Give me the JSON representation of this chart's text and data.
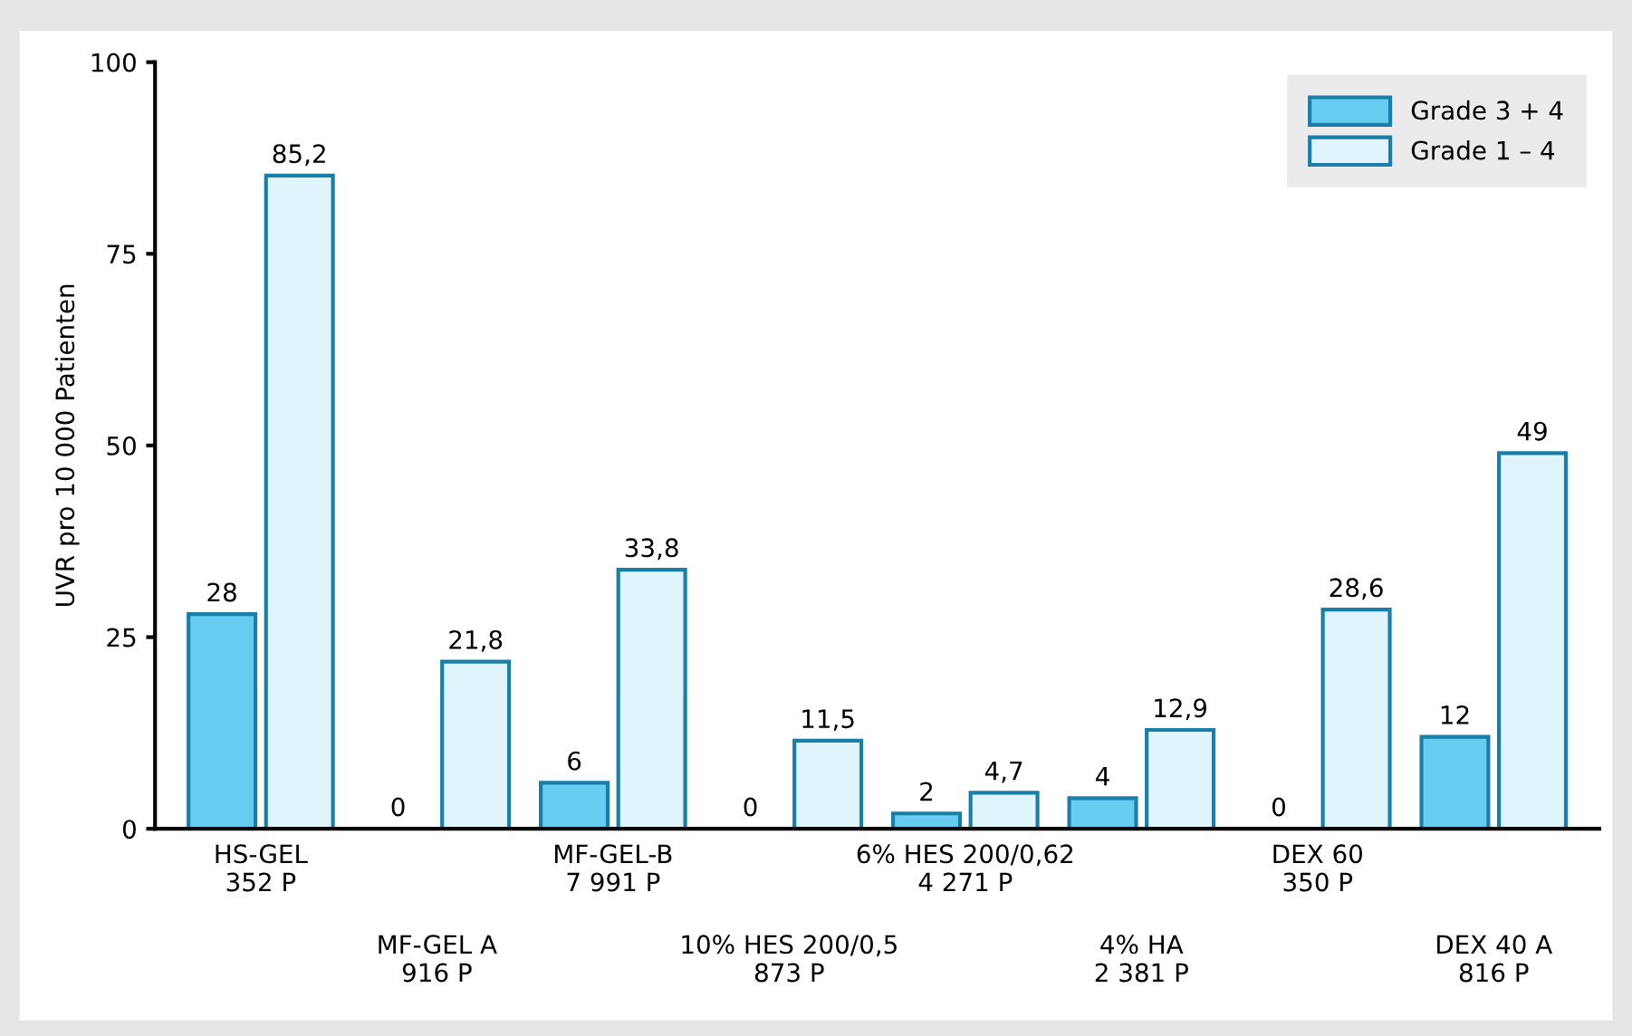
{
  "chart_data": {
    "type": "bar",
    "ylabel": "UVR pro 10 000 Patienten",
    "categories": [
      "HS-GEL\n352 P",
      "MF-GEL A\n916 P",
      "MF-GEL-B\n7 991 P",
      "10% HES 200/0,5\n873 P",
      "6% HES 200/0,62\n4 271 P",
      "4% HA\n2 381 P",
      "DEX 60\n350 P",
      "DEX 40 A\n816 P"
    ],
    "series": [
      {
        "name": "Grade 3 + 4",
        "color": "#66cdf0",
        "values": [
          28,
          0,
          6,
          0,
          2,
          4,
          0,
          12
        ],
        "value_labels": [
          "28",
          "0",
          "6",
          "0",
          "2",
          "4",
          "0",
          "12"
        ]
      },
      {
        "name": "Grade 1 – 4",
        "color": "#e0f4fb",
        "values": [
          85.2,
          21.8,
          33.8,
          11.5,
          4.7,
          12.9,
          28.6,
          49
        ],
        "value_labels": [
          "85,2",
          "21,8",
          "33,8",
          "11,5",
          "4,7",
          "12,9",
          "28,6",
          "49"
        ]
      }
    ],
    "ylim": [
      0,
      100
    ],
    "yticks": [
      0,
      25,
      50,
      75,
      100
    ],
    "grid": false,
    "legend": "top right"
  }
}
